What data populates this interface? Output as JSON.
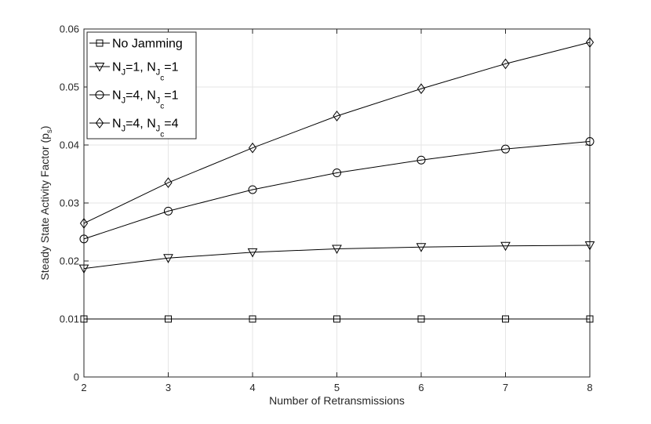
{
  "chart_data": {
    "type": "line",
    "title": "",
    "xlabel": "Number of Retransmissions",
    "ylabel_main": "Steady State Activity Factor (p",
    "ylabel_sub": "s",
    "ylabel_close": ")",
    "xlim": [
      2,
      8
    ],
    "ylim": [
      0,
      0.06
    ],
    "xticks": [
      "2",
      "3",
      "4",
      "5",
      "6",
      "7",
      "8"
    ],
    "yticks": [
      "0",
      "0.01",
      "0.02",
      "0.03",
      "0.04",
      "0.05",
      "0.06"
    ],
    "grid": true,
    "legend_position": "top-left",
    "x": [
      2,
      3,
      4,
      5,
      6,
      7,
      8
    ],
    "series": [
      {
        "marker": "square",
        "legend": [
          {
            "t": "No Jamming"
          }
        ],
        "values": [
          0.01,
          0.01,
          0.01,
          0.01,
          0.01,
          0.01,
          0.01
        ]
      },
      {
        "marker": "triangle-down",
        "legend": [
          {
            "t": "N"
          },
          {
            "s": "J"
          },
          {
            "t": "=1, N"
          },
          {
            "s": "J"
          },
          {
            "ss": "c"
          },
          {
            "t": "=1"
          }
        ],
        "values": [
          0.0187,
          0.0205,
          0.0215,
          0.0221,
          0.0224,
          0.0226,
          0.0227
        ]
      },
      {
        "marker": "circle",
        "legend": [
          {
            "t": "N"
          },
          {
            "s": "J"
          },
          {
            "t": "=4, N"
          },
          {
            "s": "J"
          },
          {
            "ss": "c"
          },
          {
            "t": "=1"
          }
        ],
        "values": [
          0.0238,
          0.0286,
          0.0323,
          0.0352,
          0.0374,
          0.0393,
          0.0406
        ]
      },
      {
        "marker": "diamond",
        "legend": [
          {
            "t": "N"
          },
          {
            "s": "J"
          },
          {
            "t": "=4, N"
          },
          {
            "s": "J"
          },
          {
            "ss": "c"
          },
          {
            "t": "=4"
          }
        ],
        "values": [
          0.0265,
          0.0335,
          0.0395,
          0.045,
          0.0497,
          0.054,
          0.0577
        ]
      }
    ]
  }
}
